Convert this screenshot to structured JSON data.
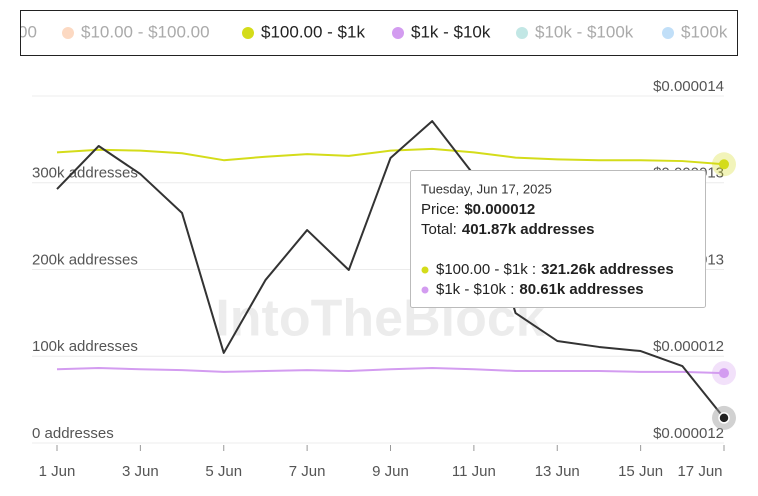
{
  "chart_data": {
    "type": "line",
    "x": [
      1,
      2,
      3,
      4,
      5,
      6,
      7,
      8,
      9,
      10,
      11,
      12,
      13,
      14,
      15,
      16,
      17
    ],
    "xlim": [
      1,
      17
    ],
    "xticks": [
      {
        "value": 1,
        "label": "1 Jun"
      },
      {
        "value": 3,
        "label": "3 Jun"
      },
      {
        "value": 5,
        "label": "5 Jun"
      },
      {
        "value": 7,
        "label": "7 Jun"
      },
      {
        "value": 9,
        "label": "9 Jun"
      },
      {
        "value": 11,
        "label": "11 Jun"
      },
      {
        "value": 13,
        "label": "13 Jun"
      },
      {
        "value": 15,
        "label": "15 Jun"
      },
      {
        "value": 17,
        "label": "17 Jun"
      }
    ],
    "ylim": [
      0,
      400000
    ],
    "yticks": [
      {
        "value": 0,
        "label": "0 addresses"
      },
      {
        "value": 100000,
        "label": "100k addresses"
      },
      {
        "value": 200000,
        "label": "200k addresses"
      },
      {
        "value": 300000,
        "label": "300k addresses"
      },
      {
        "value": 400000,
        "label": ""
      }
    ],
    "y2lim": [
      1.18e-05,
      1.4e-05
    ],
    "y2ticks": [
      {
        "value": 1.18e-05,
        "label": "$0.000012"
      },
      {
        "value": 1.235e-05,
        "label": "$0.000012"
      },
      {
        "value": 1.29e-05,
        "label": "$0.000013"
      },
      {
        "value": 1.345e-05,
        "label": "$0.000013"
      },
      {
        "value": 1.4e-05,
        "label": "$0.000014"
      }
    ],
    "grid": true,
    "series": [
      {
        "name": "$100.00 - $1k",
        "color": "#d4dc1a",
        "values": [
          335000,
          338000,
          337000,
          334000,
          326000,
          330000,
          333000,
          331000,
          337000,
          339000,
          335000,
          329000,
          327000,
          326000,
          326000,
          325000,
          321260
        ]
      },
      {
        "name": "$1k - $10k",
        "color": "#d39cf0",
        "values": [
          85000,
          86500,
          85000,
          84000,
          82000,
          83000,
          84000,
          83000,
          85000,
          86500,
          85000,
          83000,
          83000,
          83000,
          82000,
          82000,
          80610
        ]
      }
    ],
    "price_series": {
      "color": "#333333",
      "axis": "y2",
      "values": [
        1.341e-05,
        1.3683e-05,
        1.3505e-05,
        1.3258e-05,
        1.2371e-05,
        1.2833e-05,
        1.315e-05,
        1.2897e-05,
        1.3607e-05,
        1.3841e-05,
        1.35e-05,
        1.2624e-05,
        1.2447e-05,
        1.2409e-05,
        1.2383e-05,
        1.2288e-05,
        1.1959e-05
      ]
    },
    "legend_inactive": [
      {
        "name": "00",
        "color": "#f9b98f"
      },
      {
        "name": "$10.00 - $100.00",
        "color": "#f9b98f"
      },
      {
        "name": "$10k - $100k",
        "color": "#8fd3d0"
      },
      {
        "name": "$100k",
        "color": "#8ec4f2"
      }
    ],
    "watermark": "IntoTheBlock",
    "tooltip": {
      "date": "Tuesday, Jun 17, 2025",
      "price_label": "Price:",
      "price": "$0.000012",
      "total_label": "Total:",
      "total": "401.87k addresses",
      "rows": [
        {
          "label": "$100.00 - $1k :",
          "value": "321.26k addresses"
        },
        {
          "label": "$1k - $10k :",
          "value": "80.61k addresses"
        }
      ]
    }
  }
}
